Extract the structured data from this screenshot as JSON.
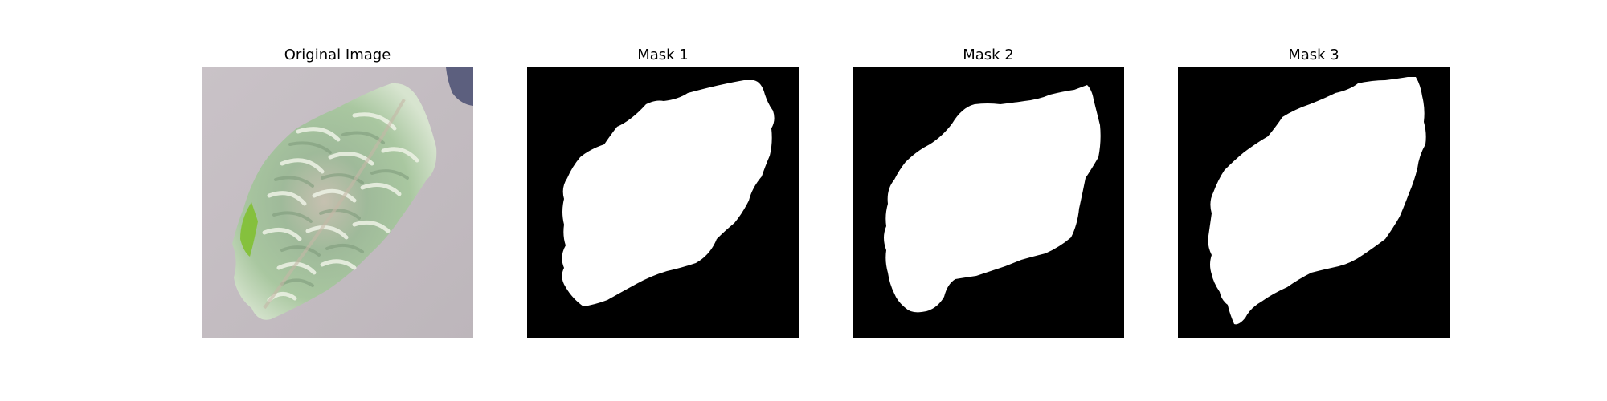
{
  "figure": {
    "panels": [
      {
        "id": "original",
        "title": "Original Image",
        "kind": "photo"
      },
      {
        "id": "mask1",
        "title": "Mask 1",
        "kind": "mask"
      },
      {
        "id": "mask2",
        "title": "Mask 2",
        "kind": "mask"
      },
      {
        "id": "mask3",
        "title": "Mask 3",
        "kind": "mask"
      }
    ],
    "colors": {
      "mask_background": "#000000",
      "mask_foreground": "#ffffff",
      "photo_background": "#c3bcc1",
      "leaf_green": "#a7c39d",
      "leaf_highlight": "#eef3e6",
      "leaf_bright": "#7fc02c",
      "corner_dark": "#5c5f7e"
    }
  }
}
